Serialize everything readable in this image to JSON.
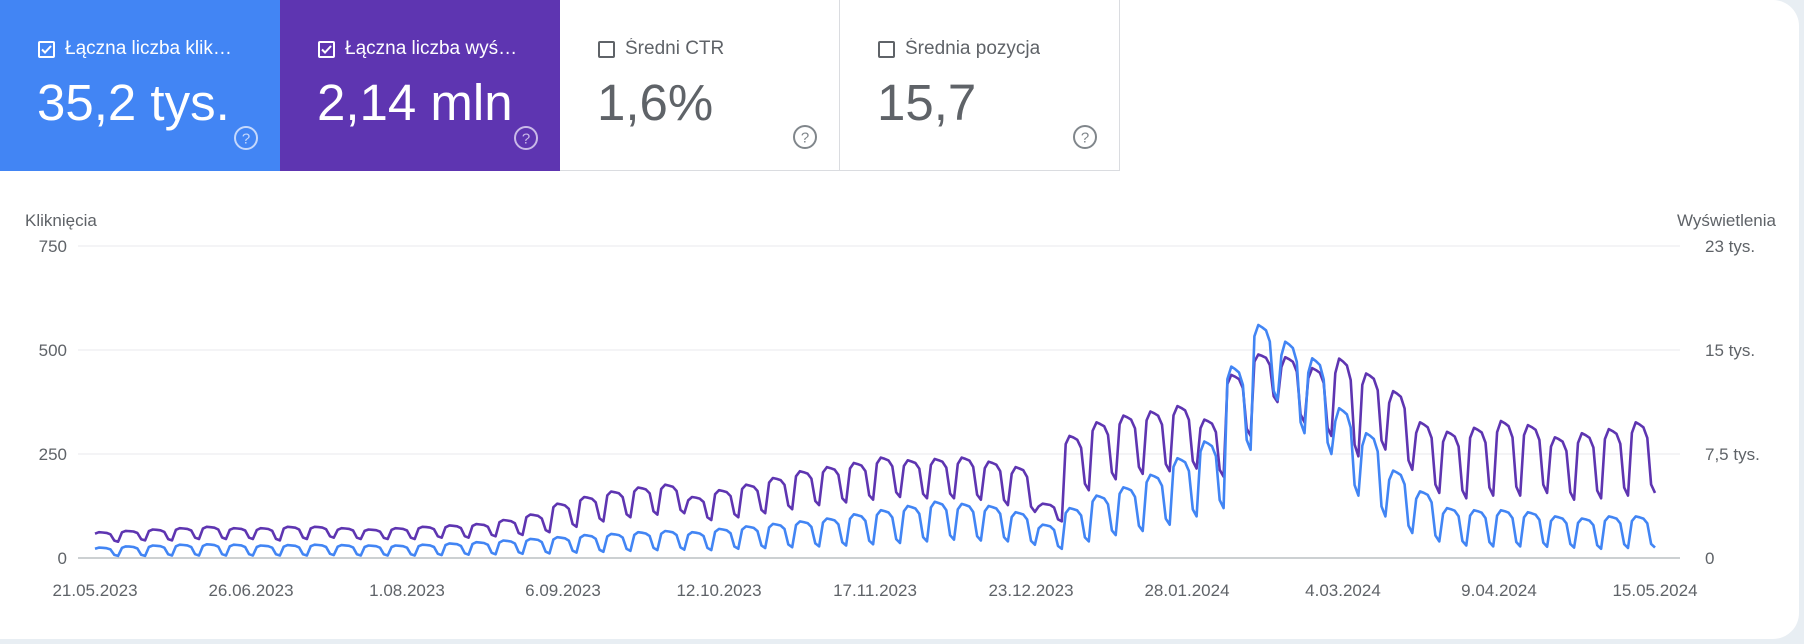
{
  "metrics": [
    {
      "label": "Łączna liczba klik…",
      "value": "35,2 tys.",
      "checked": true
    },
    {
      "label": "Łączna liczba wyś…",
      "value": "2,14 mln",
      "checked": true
    },
    {
      "label": "Średni CTR",
      "value": "1,6%",
      "checked": false
    },
    {
      "label": "Średnia pozycja",
      "value": "15,7",
      "checked": false
    }
  ],
  "chart": {
    "left_axis_title": "Kliknięcia",
    "right_axis_title": "Wyświetlenia"
  },
  "colors": {
    "clicks": "#4285f4",
    "impressions": "#5e35b1",
    "grid": "#e8eaed",
    "text": "#5f6368"
  },
  "icons": {
    "help": "help-circle-icon",
    "checkbox": "checkbox-icon"
  },
  "chart_data": {
    "type": "line",
    "x_tick_labels": [
      "21.05.2023",
      "26.06.2023",
      "1.08.2023",
      "6.09.2023",
      "12.10.2023",
      "17.11.2023",
      "23.12.2023",
      "28.01.2024",
      "4.03.2024",
      "9.04.2024",
      "15.05.2024"
    ],
    "y_left": {
      "title": "Kliknięcia",
      "ticks": [
        "0",
        "250",
        "500",
        "750"
      ],
      "range": [
        0,
        750
      ]
    },
    "y_right": {
      "title": "Wyświetlenia",
      "ticks": [
        "0",
        "7,5 tys.",
        "15 tys.",
        "23 tys."
      ],
      "range": [
        0,
        23000
      ]
    },
    "x_range_dates": [
      "21.05.2023",
      "15.05.2024"
    ],
    "series": [
      {
        "axis": "right",
        "color": "#5e35b1",
        "weekly_values": [
          1900,
          2000,
          2100,
          2200,
          2300,
          2200,
          2200,
          2300,
          2300,
          2200,
          2100,
          2200,
          2300,
          2400,
          2500,
          2800,
          3200,
          4000,
          4500,
          4900,
          5200,
          5400,
          4500,
          5000,
          5400,
          5900,
          6400,
          6700,
          7000,
          7400,
          7200,
          7300,
          7400,
          7100,
          6700,
          4000,
          9000,
          10000,
          10500,
          10800,
          11200,
          10200,
          13500,
          15000,
          14800,
          14000,
          14700,
          13600,
          12300,
          10000,
          9300,
          9600,
          10100,
          9800,
          8900,
          9200,
          9500,
          10000
        ],
        "weekly_lows": [
          1200,
          1300,
          1300,
          1400,
          1400,
          1400,
          1300,
          1400,
          1500,
          1400,
          1400,
          1400,
          1500,
          1500,
          1600,
          1700,
          1900,
          2300,
          2700,
          3000,
          3200,
          3300,
          2800,
          3000,
          3300,
          3600,
          3900,
          4100,
          4300,
          4500,
          4400,
          4400,
          4300,
          3900,
          3400,
          2700,
          5000,
          5800,
          6200,
          6400,
          6600,
          6000,
          9000,
          11500,
          10000,
          9000,
          7500,
          8000,
          6500,
          4800,
          4400,
          4600,
          4600,
          4800,
          4300,
          4400,
          4600,
          4800
        ]
      },
      {
        "axis": "left",
        "color": "#4285f4",
        "weekly_values": [
          25,
          28,
          30,
          32,
          33,
          32,
          30,
          31,
          32,
          31,
          30,
          30,
          32,
          35,
          38,
          42,
          46,
          50,
          55,
          58,
          62,
          65,
          62,
          70,
          76,
          82,
          88,
          95,
          105,
          115,
          125,
          135,
          130,
          125,
          110,
          80,
          120,
          150,
          170,
          200,
          240,
          280,
          460,
          560,
          520,
          480,
          360,
          300,
          210,
          160,
          120,
          115,
          115,
          110,
          100,
          95,
          100,
          100
        ],
        "weekly_lows": [
          5,
          5,
          6,
          6,
          6,
          6,
          6,
          6,
          7,
          6,
          6,
          6,
          7,
          8,
          9,
          10,
          11,
          13,
          15,
          17,
          19,
          20,
          19,
          22,
          24,
          26,
          28,
          30,
          33,
          36,
          40,
          44,
          42,
          40,
          32,
          22,
          40,
          55,
          65,
          80,
          100,
          120,
          260,
          380,
          300,
          250,
          150,
          100,
          60,
          40,
          30,
          28,
          28,
          27,
          25,
          22,
          24,
          25
        ]
      }
    ]
  }
}
